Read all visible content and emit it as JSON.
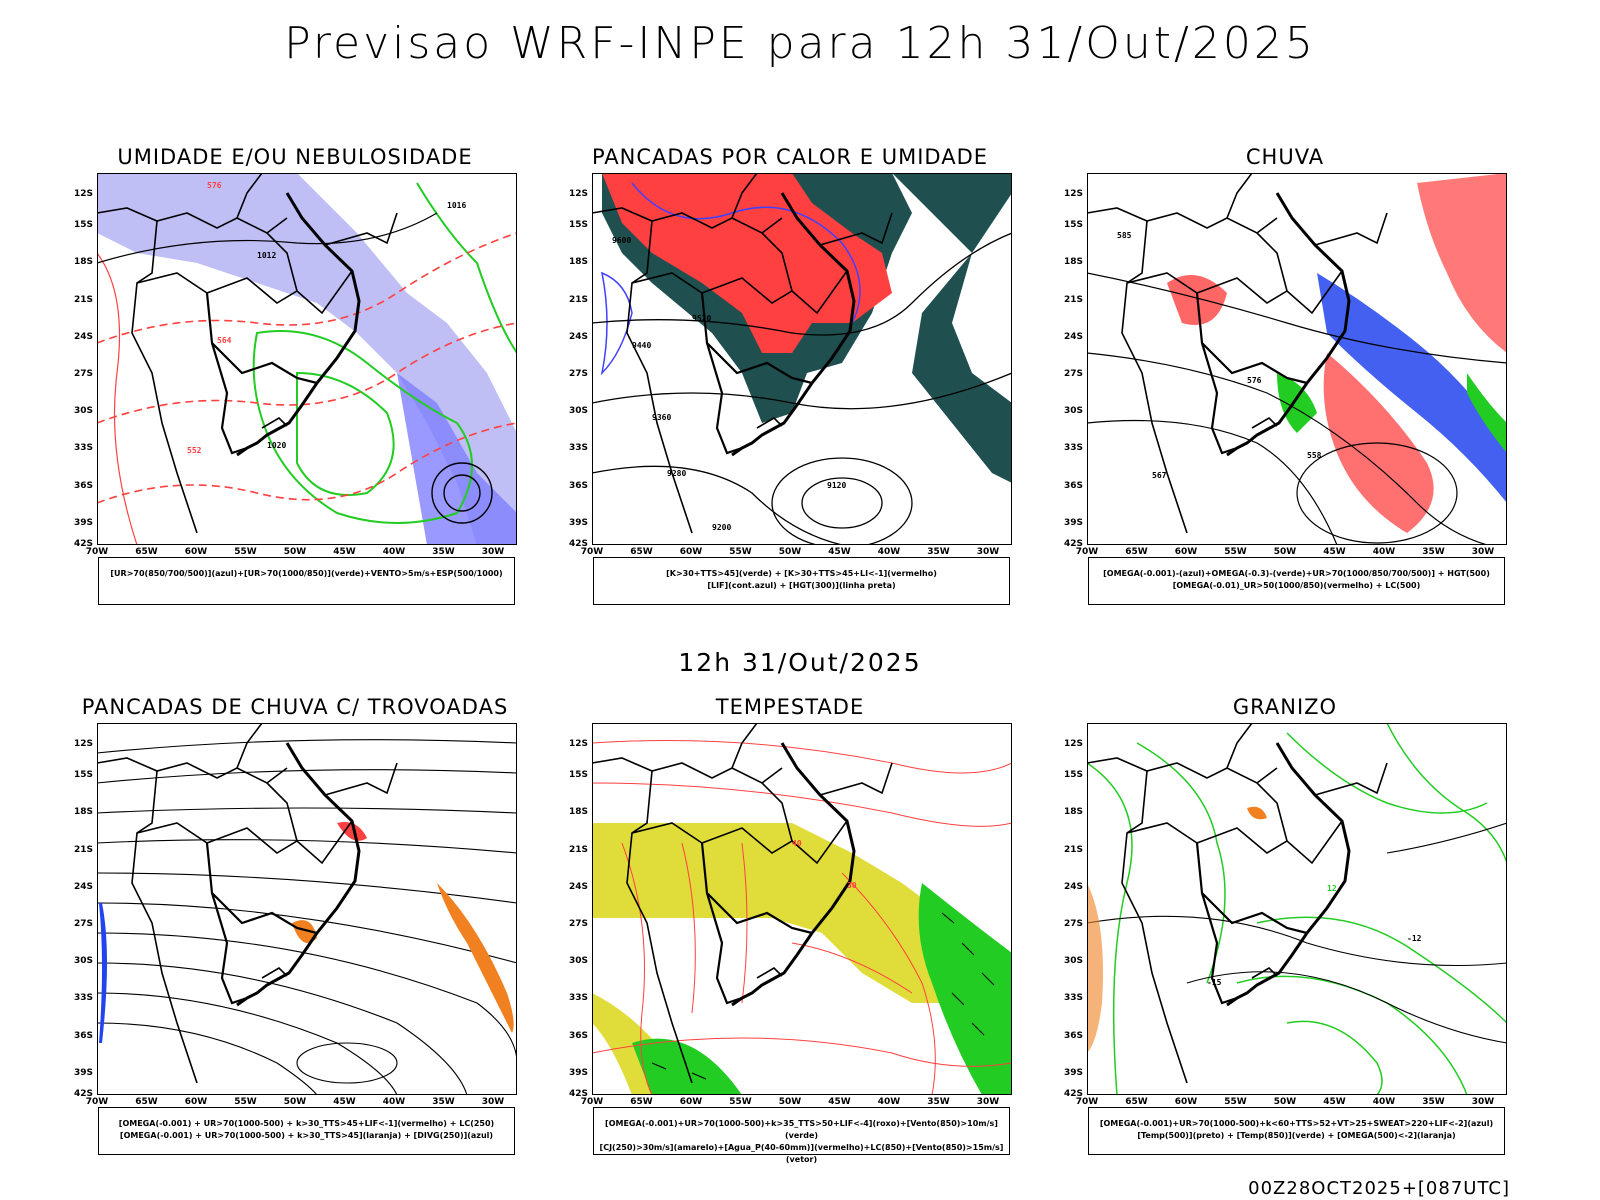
{
  "title": "Previsao WRF-INPE  para 12h 31/Out/2025",
  "subtitle": "12h 31/Out/2025",
  "footer": "00Z28OCT2025+[087UTC]",
  "lat_labels": [
    "12S",
    "15S",
    "18S",
    "21S",
    "24S",
    "27S",
    "30S",
    "33S",
    "36S",
    "39S",
    "42S"
  ],
  "lon_labels": [
    "70W",
    "65W",
    "60W",
    "55W",
    "50W",
    "45W",
    "40W",
    "35W",
    "30W"
  ],
  "colors": {
    "blue": "#8080ff",
    "green": "#22cc22",
    "red": "#ff4040",
    "darkteal": "#1f4f4f",
    "yellow": "#e0dc3a",
    "orange": "#f08020",
    "purple": "#a020d0"
  },
  "panels": [
    {
      "title": "UMIDADE E/OU NEBULOSIDADE",
      "legend": [
        "[UR>70(850/700/500)](azul)+[UR>70(1000/850)](verde)+VENTO>5m/s+ESP(500/1000)"
      ],
      "labels": {
        "l1": "1016",
        "l2": "1012",
        "l3": "1020",
        "l4": "576",
        "l5": "564",
        "l6": "552"
      }
    },
    {
      "title": "PANCADAS POR CALOR E UMIDADE",
      "legend": [
        "[K>30+TTS>45](verde)  +  [K>30+TTS>45+LI<-1](vermelho)",
        "[LIF](cont.azul)  +  [HGT(300)](linha preta)"
      ],
      "labels": {
        "l1": "9600",
        "l2": "9520",
        "l3": "9440",
        "l4": "9360",
        "l5": "9280",
        "l6": "9120",
        "l7": "9200"
      }
    },
    {
      "title": "CHUVA",
      "legend": [
        "[OMEGA(-0.001)-(azul)+OMEGA(-0.3)-(verde)+UR>70(1000/850/700/500)]  +  HGT(500)",
        "[OMEGA(-0.01)_UR>50(1000/850)(vermelho)  +  LC(500)"
      ],
      "labels": {
        "l1": "585",
        "l2": "576",
        "l3": "567",
        "l4": "558"
      }
    },
    {
      "title": "PANCADAS DE CHUVA C/ TROVOADAS",
      "legend": [
        "[OMEGA(-0.001)  +  UR>70(1000-500)  +  k>30_TTS>45+LIF<-1](vermelho)  +  LC(250)",
        "[OMEGA(-0.001)  +  UR>70(1000-500)  +  k>30_TTS>45](laranja)  +  [DIVG(250)](azul)"
      ],
      "labels": {}
    },
    {
      "title": "TEMPESTADE",
      "legend": [
        "[OMEGA(-0.001)+UR>70(1000-500)+k>35_TTS>50+LIF<-4](roxo)+[Vento(850)>10m/s](verde)",
        "[CJ(250)>30m/s](amarelo)+[Agua_P(40-60mm)](vermelho)+LC(850)+[Vento(850)>15m/s](vetor)"
      ],
      "labels": {
        "l1": "40",
        "l2": "30"
      }
    },
    {
      "title": "GRANIZO",
      "legend": [
        "[OMEGA(-0.001)+UR>70(1000-500)+k<60+TTS>52+VT>25+SWEAT>220+LIF<-2](azul)",
        "[Temp(500)](preto)  +  [Temp(850)](verde)  +  [OMEGA(500)<-2](laranja)"
      ],
      "labels": {
        "l1": "-12",
        "l2": "12",
        "l3": "-15"
      }
    }
  ]
}
